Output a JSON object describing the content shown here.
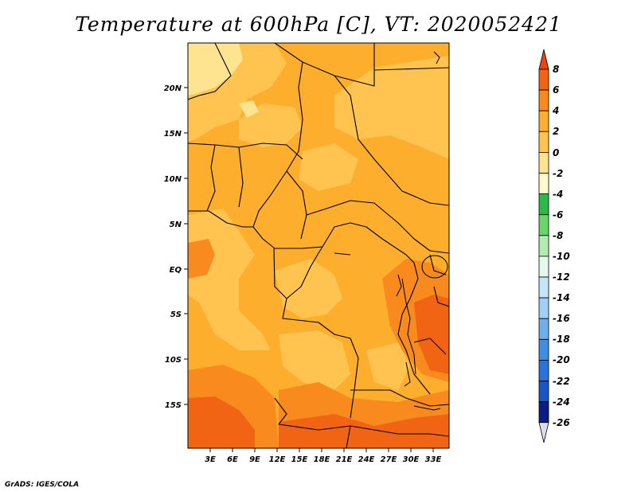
{
  "title": "Temperature at 600hPa [C], VT: 2020052421",
  "credit": "GrADS: IGES/COLA",
  "map": {
    "lat_ticks": [
      "20N",
      "15N",
      "10N",
      "5N",
      "EQ",
      "5S",
      "10S",
      "15S"
    ],
    "lon_ticks": [
      "3E",
      "6E",
      "9E",
      "12E",
      "15E",
      "18E",
      "21E",
      "24E",
      "27E",
      "30E",
      "33E"
    ],
    "colors": {
      "c_m2_0": "#fee391",
      "c_0_2": "#fec44f",
      "c_2_4": "#fdae2c",
      "c_4_6": "#f88a1e",
      "c_6_8": "#f06414",
      "border": "#000000"
    }
  },
  "colorbar": {
    "labels": [
      "8",
      "6",
      "4",
      "2",
      "0",
      "-2",
      "-4",
      "-6",
      "-8",
      "-10",
      "-12",
      "-14",
      "-16",
      "-18",
      "-20",
      "-22",
      "-24",
      "-26"
    ],
    "colors": [
      "#f0420c",
      "#f06414",
      "#f88a1e",
      "#fdae2c",
      "#fec44f",
      "#fee391",
      "#fffacd",
      "#2db84a",
      "#6bd46b",
      "#b2ecb0",
      "#e6f9ee",
      "#c5e5fb",
      "#9fd0f6",
      "#6eb0ee",
      "#3f8ee4",
      "#2a72dc",
      "#1a55c8",
      "#0e35a8",
      "#0a1d84",
      "#dcdcf0"
    ]
  }
}
